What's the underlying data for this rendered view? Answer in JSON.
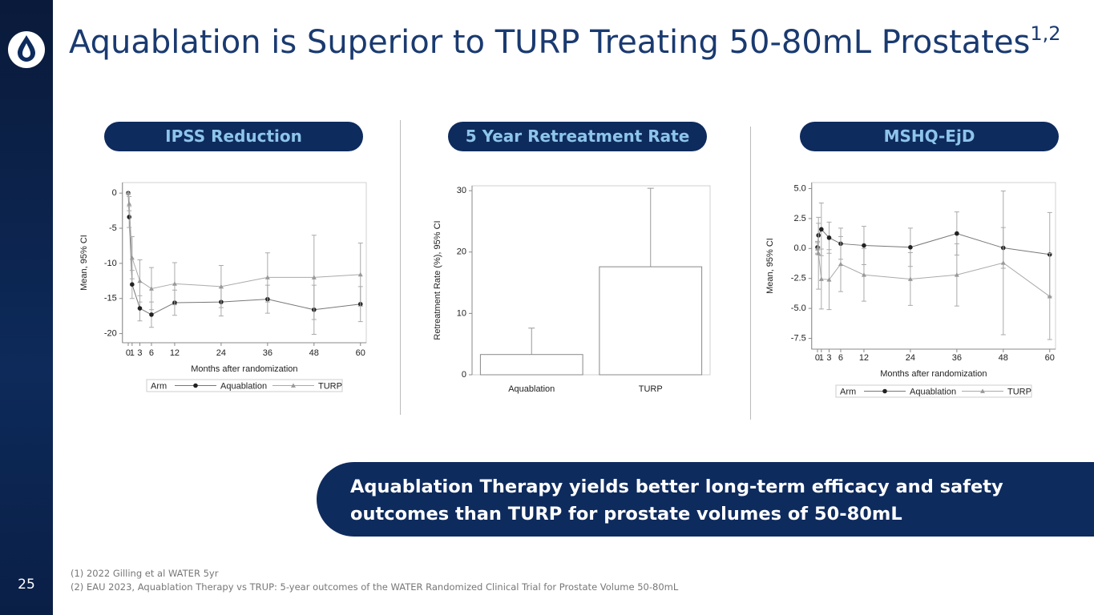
{
  "slide_title": "Aquablation is Superior to TURP Treating 50-80mL Prostates",
  "title_superscript": "1,2",
  "page_number": "25",
  "callout": "Aquablation Therapy yields better long-term efficacy and safety outcomes than TURP for prostate volumes of 50-80mL",
  "footnotes": [
    "(1)   2022 Gilling et al WATER 5yr",
    "(2)   EAU 2023, Aquablation Therapy vs TRUP: 5-year outcomes of the WATER Randomized Clinical Trial for Prostate Volume 50-80mL"
  ],
  "chart_data": [
    {
      "type": "line",
      "title": "IPSS Reduction",
      "xlabel": "Months after randomization",
      "ylabel": "Mean, 95% CI",
      "legend_title": "Arm",
      "x": [
        0,
        0.25,
        1,
        3,
        6,
        12,
        24,
        36,
        48,
        60
      ],
      "xlim": [
        -1.5,
        61.5
      ],
      "xticks": [
        0,
        1,
        3,
        6,
        12,
        24,
        36,
        48,
        60
      ],
      "ylim": [
        -21.3,
        1.5
      ],
      "yticks": [
        0,
        -5,
        -10,
        -15,
        -20
      ],
      "series": [
        {
          "name": "Aquablation",
          "color": "#222222",
          "line_color": "#777777",
          "marker": "circle",
          "values": [
            0,
            -3.4,
            -13.0,
            -16.4,
            -17.3,
            -15.6,
            -15.5,
            -15.1,
            -16.6,
            -15.8
          ],
          "errors": [
            0,
            1.5,
            2,
            1.8,
            1.8,
            1.8,
            2,
            2,
            3.5,
            2.5
          ]
        },
        {
          "name": "TURP",
          "color": "#999999",
          "line_color": "#aaaaaa",
          "marker": "triangle",
          "values": [
            0,
            -1.5,
            -9.2,
            -12.5,
            -13.6,
            -12.9,
            -13.3,
            -12.0,
            -12.0,
            -11.6
          ],
          "errors": [
            0,
            1,
            3,
            3,
            3,
            3,
            3,
            3.5,
            6,
            4.5
          ]
        }
      ]
    },
    {
      "type": "bar",
      "title": "5 Year Retreatment Rate",
      "ylabel": "Retreatment Rate (%), 95% CI",
      "categories": [
        "Aquablation",
        "TURP"
      ],
      "values": [
        3.3,
        17.6
      ],
      "errors": [
        4.3,
        12.8
      ],
      "color": "#ffffff",
      "ylim": [
        0,
        30.8
      ],
      "yticks": [
        0,
        10,
        20,
        30
      ]
    },
    {
      "type": "line",
      "title": "MSHQ-EjD",
      "xlabel": "Months after randomization",
      "ylabel": "Mean, 95% CI",
      "legend_title": "Arm",
      "x": [
        0,
        0.25,
        1,
        3,
        6,
        12,
        24,
        36,
        48,
        60
      ],
      "xlim": [
        -1.5,
        61.5
      ],
      "xticks": [
        0,
        1,
        3,
        6,
        12,
        24,
        36,
        48,
        60
      ],
      "ylim": [
        -8.4,
        5.5
      ],
      "yticks": [
        {
          "value": 5,
          "label": "5.0"
        },
        {
          "value": 2.5,
          "label": "2.5"
        },
        {
          "value": 0,
          "label": "0.0"
        },
        {
          "value": -2.5,
          "label": "-2.5"
        },
        {
          "value": -5,
          "label": "-5.0"
        },
        {
          "value": -7.5,
          "label": "-7.5"
        }
      ],
      "series": [
        {
          "name": "Aquablation",
          "color": "#222222",
          "line_color": "#777777",
          "marker": "circle",
          "values": [
            0.1,
            1.1,
            1.6,
            0.9,
            0.4,
            0.25,
            0.1,
            1.25,
            0.05,
            -0.5
          ],
          "errors": [
            0.5,
            1,
            2.2,
            1.3,
            1.3,
            1.6,
            1.6,
            1.8,
            1.7,
            3.5
          ]
        },
        {
          "name": "TURP",
          "color": "#999999",
          "line_color": "#aaaaaa",
          "marker": "triangle",
          "values": [
            0,
            -0.4,
            -2.55,
            -2.6,
            -1.3,
            -2.2,
            -2.55,
            -2.2,
            -1.2,
            -4.0
          ],
          "errors": [
            0.5,
            3,
            2.5,
            2.5,
            2.3,
            2.2,
            2.2,
            2.6,
            6,
            3.6
          ]
        }
      ]
    }
  ]
}
